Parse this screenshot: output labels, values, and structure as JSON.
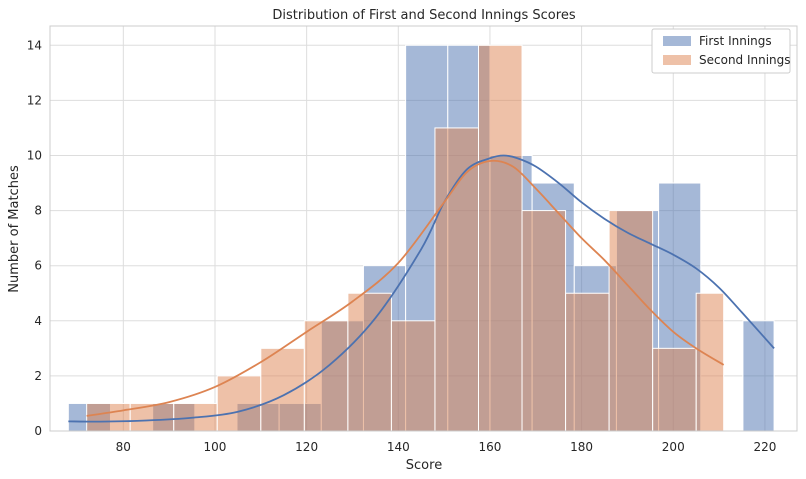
{
  "chart_data": {
    "type": "bar",
    "title": "Distribution of First and Second Innings Scores",
    "xlabel": "Score",
    "ylabel": "Number of Matches",
    "xlim": [
      64,
      227
    ],
    "ylim": [
      0,
      14.7
    ],
    "xticks": [
      80,
      100,
      120,
      140,
      160,
      180,
      200,
      220
    ],
    "yticks": [
      0,
      2,
      4,
      6,
      8,
      10,
      12,
      14
    ],
    "grid": true,
    "legend_position": "top-right",
    "series": [
      {
        "name": "First Innings",
        "color": "#4C72B0",
        "bins": [
          {
            "x0": 68.0,
            "x1": 77.2,
            "count": 1
          },
          {
            "x0": 77.2,
            "x1": 86.4,
            "count": 0
          },
          {
            "x0": 86.4,
            "x1": 95.6,
            "count": 1
          },
          {
            "x0": 95.6,
            "x1": 104.8,
            "count": 0
          },
          {
            "x0": 104.8,
            "x1": 114.0,
            "count": 1
          },
          {
            "x0": 114.0,
            "x1": 123.2,
            "count": 1
          },
          {
            "x0": 123.2,
            "x1": 132.4,
            "count": 4
          },
          {
            "x0": 132.4,
            "x1": 141.6,
            "count": 6
          },
          {
            "x0": 141.6,
            "x1": 150.8,
            "count": 14
          },
          {
            "x0": 150.8,
            "x1": 160.0,
            "count": 14
          },
          {
            "x0": 160.0,
            "x1": 169.2,
            "count": 10
          },
          {
            "x0": 169.2,
            "x1": 178.4,
            "count": 9
          },
          {
            "x0": 178.4,
            "x1": 187.6,
            "count": 6
          },
          {
            "x0": 187.6,
            "x1": 196.8,
            "count": 8
          },
          {
            "x0": 196.8,
            "x1": 206.0,
            "count": 9
          },
          {
            "x0": 206.0,
            "x1": 215.2,
            "count": 0
          },
          {
            "x0": 215.2,
            "x1": 222.0,
            "count": 4
          }
        ],
        "kde": {
          "x": [
            68,
            75,
            85,
            95,
            105,
            115,
            125,
            135,
            145,
            150,
            155,
            160,
            163,
            166,
            170,
            175,
            180,
            185,
            190,
            195,
            200,
            205,
            210,
            215,
            222
          ],
          "y": [
            0.35,
            0.34,
            0.38,
            0.48,
            0.7,
            1.3,
            2.4,
            4.1,
            6.6,
            8.3,
            9.5,
            9.9,
            10.0,
            9.9,
            9.6,
            9.0,
            8.3,
            7.7,
            7.2,
            6.8,
            6.4,
            5.9,
            5.2,
            4.3,
            3.0
          ]
        }
      },
      {
        "name": "Second Innings",
        "color": "#DD8452",
        "bins": [
          {
            "x0": 72.0,
            "x1": 81.5,
            "count": 1
          },
          {
            "x0": 81.5,
            "x1": 91.0,
            "count": 1
          },
          {
            "x0": 91.0,
            "x1": 100.5,
            "count": 1
          },
          {
            "x0": 100.5,
            "x1": 110.0,
            "count": 2
          },
          {
            "x0": 110.0,
            "x1": 119.5,
            "count": 3
          },
          {
            "x0": 119.5,
            "x1": 129.0,
            "count": 4
          },
          {
            "x0": 129.0,
            "x1": 138.5,
            "count": 5
          },
          {
            "x0": 138.5,
            "x1": 148.0,
            "count": 4
          },
          {
            "x0": 148.0,
            "x1": 157.5,
            "count": 11
          },
          {
            "x0": 157.5,
            "x1": 167.0,
            "count": 14
          },
          {
            "x0": 167.0,
            "x1": 176.5,
            "count": 8
          },
          {
            "x0": 176.5,
            "x1": 186.0,
            "count": 5
          },
          {
            "x0": 186.0,
            "x1": 195.5,
            "count": 8
          },
          {
            "x0": 195.5,
            "x1": 205.0,
            "count": 3
          },
          {
            "x0": 205.0,
            "x1": 211.0,
            "count": 5
          }
        ],
        "kde": {
          "x": [
            72,
            80,
            90,
            100,
            110,
            120,
            130,
            140,
            150,
            155,
            160,
            165,
            170,
            175,
            180,
            185,
            190,
            195,
            200,
            205,
            211
          ],
          "y": [
            0.55,
            0.75,
            1.05,
            1.6,
            2.5,
            3.6,
            4.7,
            6.1,
            8.3,
            9.4,
            9.8,
            9.6,
            8.8,
            7.9,
            7.0,
            6.2,
            5.3,
            4.4,
            3.6,
            3.0,
            2.4
          ]
        }
      }
    ]
  }
}
